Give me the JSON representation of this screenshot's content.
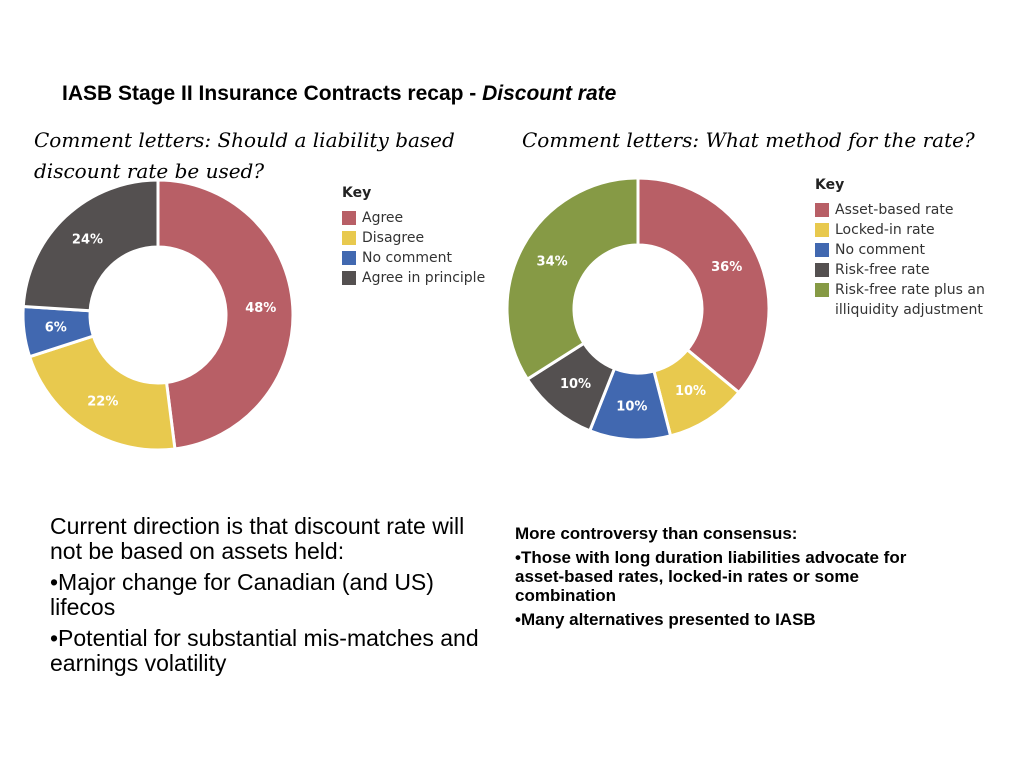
{
  "header": {
    "title_main": "IASB Stage II Insurance Contracts recap - ",
    "title_italic": "Discount rate"
  },
  "chart_data": [
    {
      "type": "pie",
      "title": "Comment letters: Should a liability based discount rate be used?",
      "legend_title": "Key",
      "legend_position": "right",
      "slices": [
        {
          "label": "Agree",
          "value": 48,
          "display": "48%",
          "color": "#b85f66"
        },
        {
          "label": "Disagree",
          "value": 22,
          "display": "22%",
          "color": "#e8c94e"
        },
        {
          "label": "No comment",
          "value": 6,
          "display": "6%",
          "color": "#4168b0"
        },
        {
          "label": "Agree in principle",
          "value": 24,
          "display": "24%",
          "color": "#545050"
        }
      ]
    },
    {
      "type": "pie",
      "title": "Comment letters: What method for the rate?",
      "legend_title": "Key",
      "legend_position": "right",
      "slices": [
        {
          "label": "Asset-based rate",
          "value": 36,
          "display": "36%",
          "color": "#b85f66"
        },
        {
          "label": "Locked-in rate",
          "value": 10,
          "display": "10%",
          "color": "#e8c94e"
        },
        {
          "label": "No comment",
          "value": 10,
          "display": "10%",
          "color": "#4168b0"
        },
        {
          "label": "Risk-free rate",
          "value": 10,
          "display": "10%",
          "color": "#545050"
        },
        {
          "label": "Risk-free rate plus an illiquidity adjustment",
          "value": 34,
          "display": "34%",
          "color": "#869a45"
        }
      ]
    }
  ],
  "text_left": {
    "intro": "Current direction is that discount rate will not be based on assets held:",
    "bullets": [
      "•Major change for Canadian (and US) lifecos",
      "•Potential for substantial mis-matches and earnings volatility"
    ]
  },
  "text_right": {
    "intro": "More controversy than consensus:",
    "bullets": [
      "•Those with long duration liabilities advocate for asset-based rates, locked-in rates or some combination",
      "•Many alternatives presented to IASB"
    ]
  }
}
